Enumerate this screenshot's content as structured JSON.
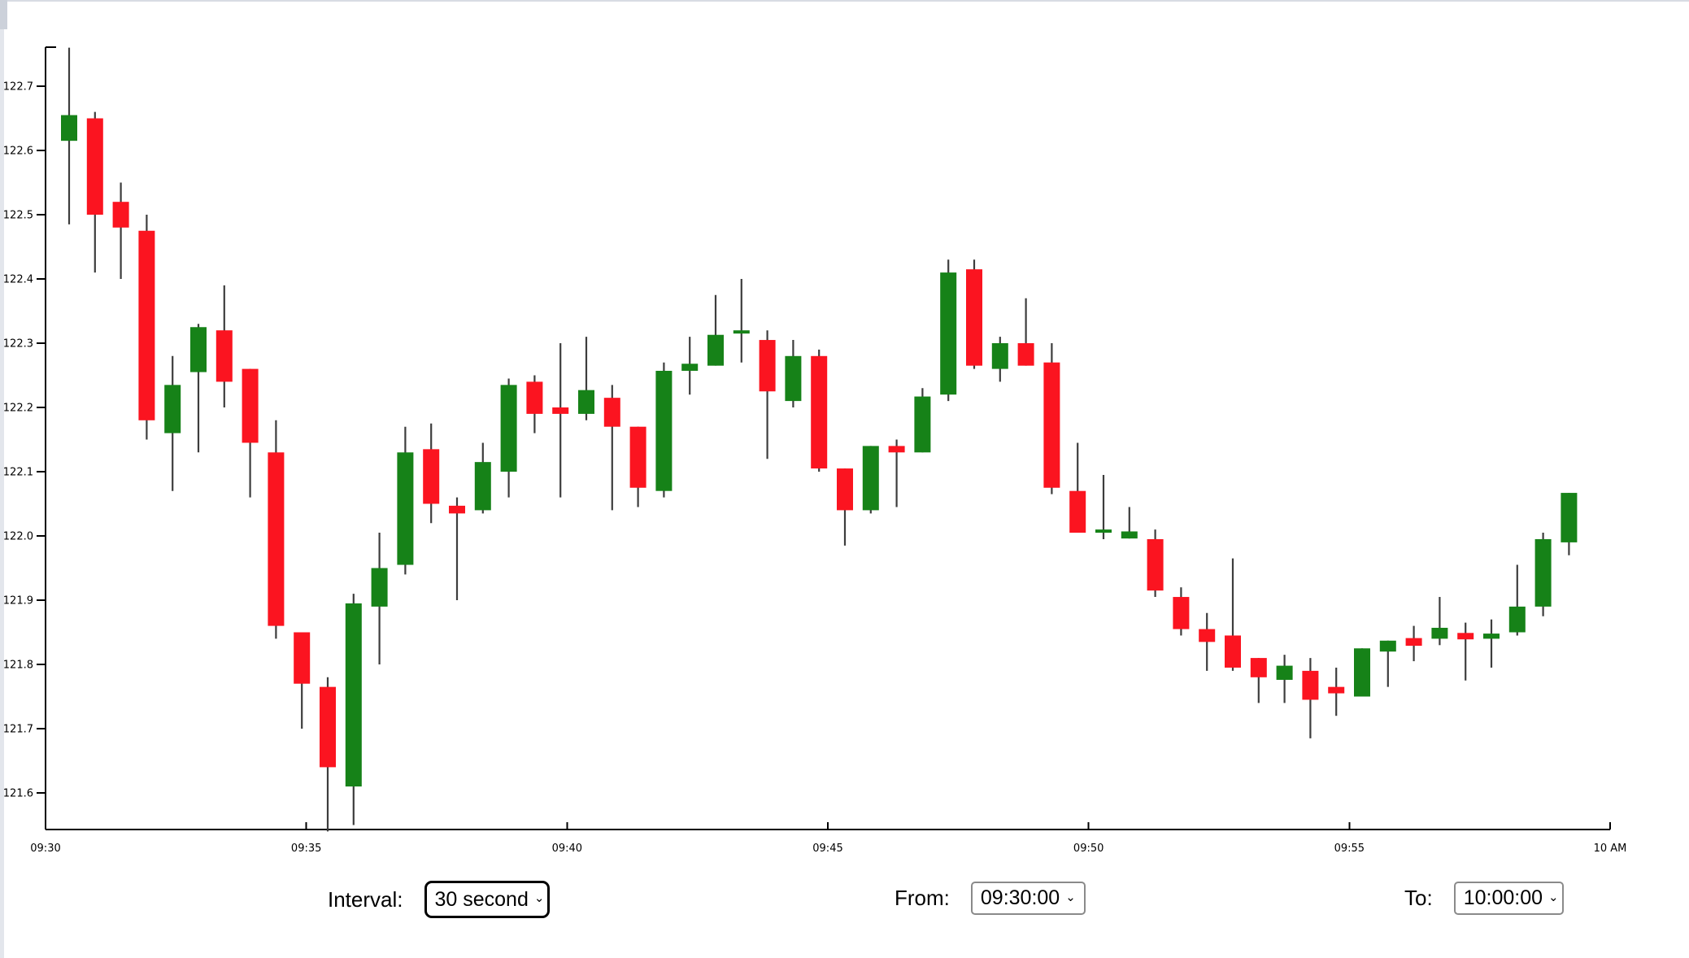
{
  "page": {
    "background": "#ffffff",
    "top_border_color": "#d8dce3",
    "left_edge_color": "#e3e6ec"
  },
  "controls": {
    "interval": {
      "label": "Interval:",
      "value": "30 second",
      "chevron": "⌄"
    },
    "from": {
      "label": "From:",
      "value": "09:30:00",
      "chevron": "⌄"
    },
    "to": {
      "label": "To:",
      "value": "10:00:00",
      "chevron": "⌄"
    }
  },
  "chart_data": {
    "type": "candlestick",
    "title": "",
    "xlabel": "",
    "ylabel": "",
    "interval": "30 second",
    "session_start": "09:30:00",
    "session_end": "10:00:00",
    "x_ticks": [
      "09:30",
      "09:35",
      "09:40",
      "09:45",
      "09:50",
      "09:55",
      "10 AM"
    ],
    "y_ticks": [
      122.7,
      122.6,
      122.5,
      122.4,
      122.3,
      122.2,
      122.1,
      122.0,
      121.9,
      121.8,
      121.7,
      121.6
    ],
    "ylim": [
      121.54,
      122.77
    ],
    "grid": false,
    "legend": "none",
    "up_color": "#168218",
    "down_color": "#fb1420",
    "wick_color": "#3d3d3d",
    "axis_color": "#000000",
    "candles": [
      {
        "t": "09:30:30",
        "o": 122.615,
        "h": 122.76,
        "l": 122.485,
        "c": 122.655
      },
      {
        "t": "09:31:00",
        "o": 122.65,
        "h": 122.66,
        "l": 122.41,
        "c": 122.5
      },
      {
        "t": "09:31:30",
        "o": 122.52,
        "h": 122.55,
        "l": 122.4,
        "c": 122.48
      },
      {
        "t": "09:32:00",
        "o": 122.475,
        "h": 122.5,
        "l": 122.15,
        "c": 122.18
      },
      {
        "t": "09:32:30",
        "o": 122.16,
        "h": 122.28,
        "l": 122.07,
        "c": 122.235
      },
      {
        "t": "09:33:00",
        "o": 122.255,
        "h": 122.33,
        "l": 122.13,
        "c": 122.325
      },
      {
        "t": "09:33:30",
        "o": 122.32,
        "h": 122.39,
        "l": 122.2,
        "c": 122.24
      },
      {
        "t": "09:34:00",
        "o": 122.26,
        "h": 122.26,
        "l": 122.06,
        "c": 122.145
      },
      {
        "t": "09:34:30",
        "o": 122.13,
        "h": 122.18,
        "l": 121.84,
        "c": 121.86
      },
      {
        "t": "09:35:00",
        "o": 121.85,
        "h": 121.85,
        "l": 121.7,
        "c": 121.77
      },
      {
        "t": "09:35:30",
        "o": 121.765,
        "h": 121.78,
        "l": 121.54,
        "c": 121.64
      },
      {
        "t": "09:36:00",
        "o": 121.61,
        "h": 121.91,
        "l": 121.55,
        "c": 121.895
      },
      {
        "t": "09:36:30",
        "o": 121.89,
        "h": 122.005,
        "l": 121.8,
        "c": 121.95
      },
      {
        "t": "09:37:00",
        "o": 121.955,
        "h": 122.17,
        "l": 121.94,
        "c": 122.13
      },
      {
        "t": "09:37:30",
        "o": 122.135,
        "h": 122.175,
        "l": 122.02,
        "c": 122.05
      },
      {
        "t": "09:38:00",
        "o": 122.047,
        "h": 122.06,
        "l": 121.9,
        "c": 122.035
      },
      {
        "t": "09:38:30",
        "o": 122.04,
        "h": 122.145,
        "l": 122.035,
        "c": 122.115
      },
      {
        "t": "09:39:00",
        "o": 122.1,
        "h": 122.245,
        "l": 122.06,
        "c": 122.235
      },
      {
        "t": "09:39:30",
        "o": 122.24,
        "h": 122.25,
        "l": 122.16,
        "c": 122.19
      },
      {
        "t": "09:40:00",
        "o": 122.2,
        "h": 122.3,
        "l": 122.06,
        "c": 122.19
      },
      {
        "t": "09:40:30",
        "o": 122.19,
        "h": 122.31,
        "l": 122.18,
        "c": 122.227
      },
      {
        "t": "09:41:00",
        "o": 122.215,
        "h": 122.235,
        "l": 122.04,
        "c": 122.17
      },
      {
        "t": "09:41:30",
        "o": 122.17,
        "h": 122.17,
        "l": 122.045,
        "c": 122.075
      },
      {
        "t": "09:42:00",
        "o": 122.07,
        "h": 122.27,
        "l": 122.06,
        "c": 122.257
      },
      {
        "t": "09:42:30",
        "o": 122.257,
        "h": 122.31,
        "l": 122.22,
        "c": 122.268
      },
      {
        "t": "09:43:00",
        "o": 122.265,
        "h": 122.375,
        "l": 122.265,
        "c": 122.313
      },
      {
        "t": "09:43:30",
        "o": 122.315,
        "h": 122.4,
        "l": 122.27,
        "c": 122.32
      },
      {
        "t": "09:44:00",
        "o": 122.305,
        "h": 122.32,
        "l": 122.12,
        "c": 122.225
      },
      {
        "t": "09:44:30",
        "o": 122.21,
        "h": 122.305,
        "l": 122.2,
        "c": 122.28
      },
      {
        "t": "09:45:00",
        "o": 122.28,
        "h": 122.29,
        "l": 122.1,
        "c": 122.105
      },
      {
        "t": "09:45:30",
        "o": 122.105,
        "h": 122.105,
        "l": 121.985,
        "c": 122.04
      },
      {
        "t": "09:46:00",
        "o": 122.04,
        "h": 122.14,
        "l": 122.035,
        "c": 122.14
      },
      {
        "t": "09:46:30",
        "o": 122.14,
        "h": 122.15,
        "l": 122.045,
        "c": 122.13
      },
      {
        "t": "09:47:00",
        "o": 122.13,
        "h": 122.23,
        "l": 122.13,
        "c": 122.217
      },
      {
        "t": "09:47:30",
        "o": 122.22,
        "h": 122.43,
        "l": 122.21,
        "c": 122.41
      },
      {
        "t": "09:48:00",
        "o": 122.415,
        "h": 122.43,
        "l": 122.26,
        "c": 122.265
      },
      {
        "t": "09:48:30",
        "o": 122.26,
        "h": 122.31,
        "l": 122.24,
        "c": 122.3
      },
      {
        "t": "09:49:00",
        "o": 122.3,
        "h": 122.37,
        "l": 122.265,
        "c": 122.265
      },
      {
        "t": "09:49:30",
        "o": 122.27,
        "h": 122.3,
        "l": 122.065,
        "c": 122.075
      },
      {
        "t": "09:50:00",
        "o": 122.07,
        "h": 122.145,
        "l": 122.005,
        "c": 122.005
      },
      {
        "t": "09:50:30",
        "o": 122.005,
        "h": 122.095,
        "l": 121.995,
        "c": 122.01
      },
      {
        "t": "09:51:00",
        "o": 121.996,
        "h": 122.045,
        "l": 121.996,
        "c": 122.007
      },
      {
        "t": "09:51:30",
        "o": 121.995,
        "h": 122.01,
        "l": 121.905,
        "c": 121.915
      },
      {
        "t": "09:52:00",
        "o": 121.905,
        "h": 121.92,
        "l": 121.845,
        "c": 121.855
      },
      {
        "t": "09:52:30",
        "o": 121.855,
        "h": 121.88,
        "l": 121.79,
        "c": 121.835
      },
      {
        "t": "09:53:00",
        "o": 121.845,
        "h": 121.965,
        "l": 121.79,
        "c": 121.795
      },
      {
        "t": "09:53:30",
        "o": 121.81,
        "h": 121.81,
        "l": 121.74,
        "c": 121.78
      },
      {
        "t": "09:54:00",
        "o": 121.776,
        "h": 121.815,
        "l": 121.74,
        "c": 121.798
      },
      {
        "t": "09:54:30",
        "o": 121.79,
        "h": 121.81,
        "l": 121.685,
        "c": 121.745
      },
      {
        "t": "09:55:00",
        "o": 121.765,
        "h": 121.795,
        "l": 121.72,
        "c": 121.755
      },
      {
        "t": "09:55:30",
        "o": 121.75,
        "h": 121.825,
        "l": 121.75,
        "c": 121.825
      },
      {
        "t": "09:56:00",
        "o": 121.82,
        "h": 121.837,
        "l": 121.765,
        "c": 121.837
      },
      {
        "t": "09:56:30",
        "o": 121.841,
        "h": 121.86,
        "l": 121.805,
        "c": 121.829
      },
      {
        "t": "09:57:00",
        "o": 121.84,
        "h": 121.905,
        "l": 121.83,
        "c": 121.857
      },
      {
        "t": "09:57:30",
        "o": 121.849,
        "h": 121.865,
        "l": 121.775,
        "c": 121.839
      },
      {
        "t": "09:58:00",
        "o": 121.84,
        "h": 121.87,
        "l": 121.795,
        "c": 121.848
      },
      {
        "t": "09:58:30",
        "o": 121.85,
        "h": 121.955,
        "l": 121.845,
        "c": 121.89
      },
      {
        "t": "09:59:00",
        "o": 121.89,
        "h": 122.005,
        "l": 121.875,
        "c": 121.995
      },
      {
        "t": "09:59:30",
        "o": 121.99,
        "h": 122.067,
        "l": 121.97,
        "c": 122.067
      }
    ]
  }
}
